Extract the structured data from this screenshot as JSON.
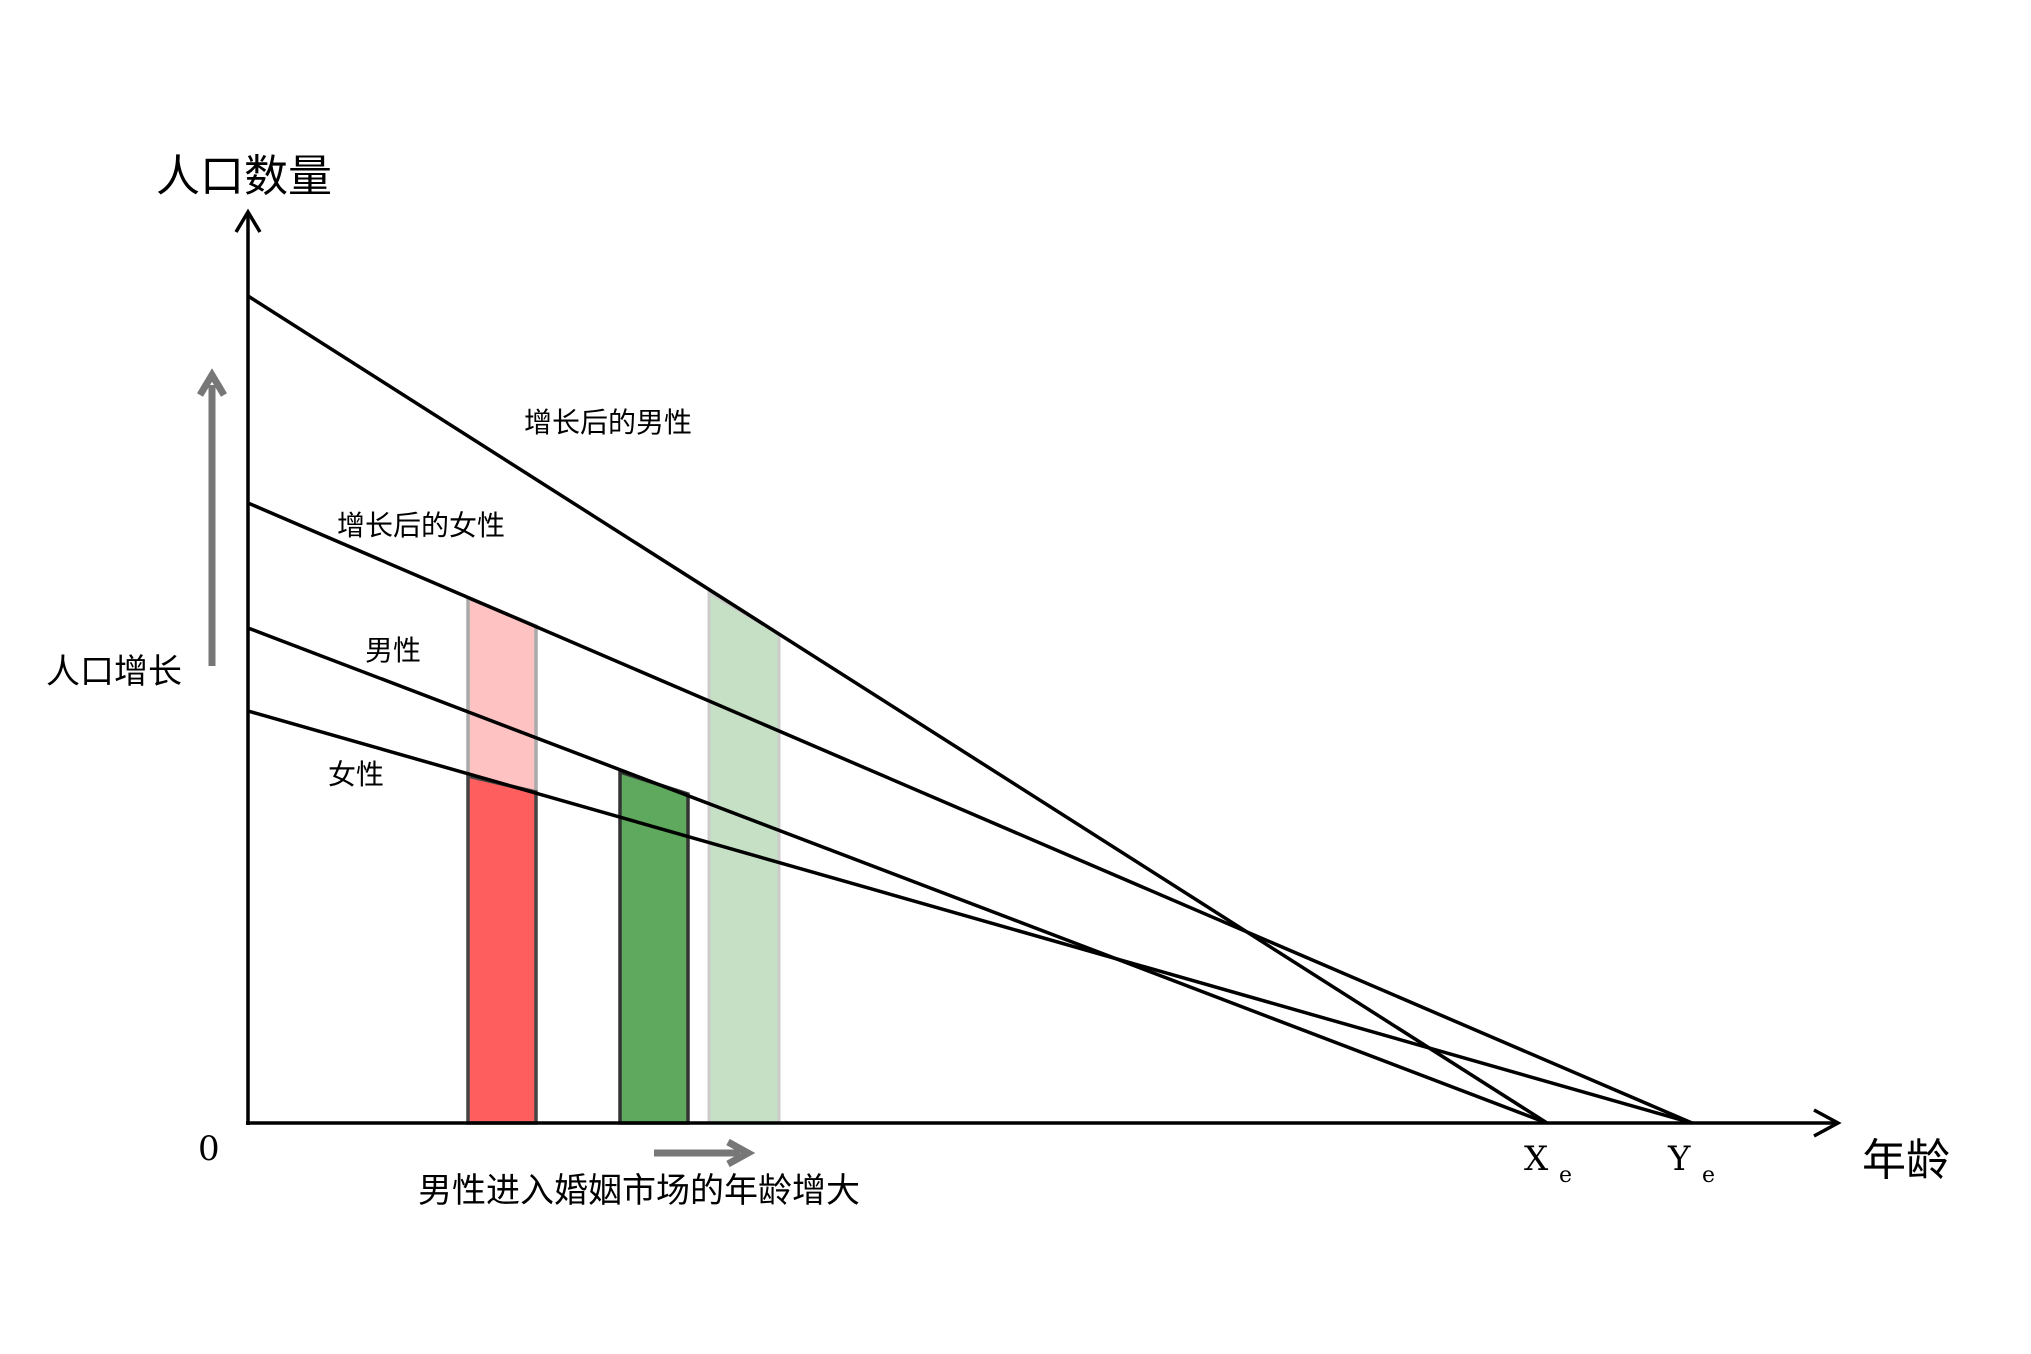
{
  "axes": {
    "y_label": "人口数量",
    "x_label": "年龄",
    "origin_label": "0"
  },
  "x_markers": {
    "xe_main": "X",
    "xe_sub": "e",
    "ye_main": "Y",
    "ye_sub": "e"
  },
  "lines": {
    "male_after": "增长后的男性",
    "female_after": "增长后的女性",
    "male": "男性",
    "female": "女性"
  },
  "annotations": {
    "growth": "人口增长",
    "age_shift": "男性进入婚姻市场的年龄增大"
  },
  "colors": {
    "female_bar": "#ff5e5e",
    "female_bar_added": "#ffc2c2",
    "male_bar": "#5ea95e",
    "male_bar_added": "#c5e0c5",
    "arrow": "#777777"
  }
}
